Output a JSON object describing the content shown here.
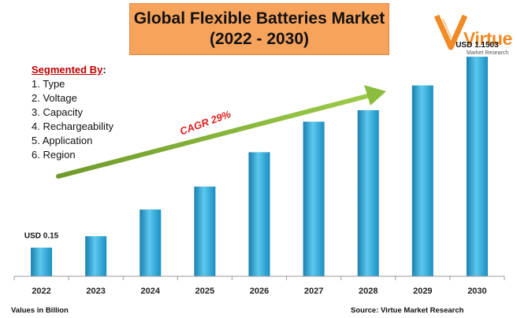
{
  "title": {
    "line1": "Global Flexible Batteries Market",
    "line2": "(2022 - 2030)"
  },
  "logo": {
    "word": "Virtue",
    "sub": "Market Research"
  },
  "segments": {
    "heading": "Segmented By",
    "colon": ":",
    "items": [
      "1. Type",
      "2. Voltage",
      "3. Capacity",
      "4. Rechargeability",
      "5. Application",
      "6. Region"
    ]
  },
  "chart_data": {
    "type": "bar",
    "categories": [
      "2022",
      "2023",
      "2024",
      "2025",
      "2026",
      "2027",
      "2028",
      "2029",
      "2030"
    ],
    "values": [
      0.15,
      0.21,
      0.35,
      0.47,
      0.65,
      0.81,
      0.87,
      1.0,
      1.1503
    ],
    "annotations": [
      {
        "category": "2022",
        "text": "USD 0.15"
      },
      {
        "category": "2030",
        "text": "USD 1.1503"
      }
    ],
    "trend_label": "CAGR 29%",
    "ylim": [
      0,
      1.2
    ],
    "grid": false,
    "bar_color": "#2ba6d6"
  },
  "footer": {
    "left": "Values in Billion",
    "right": "Source: Virtue Market Research"
  }
}
